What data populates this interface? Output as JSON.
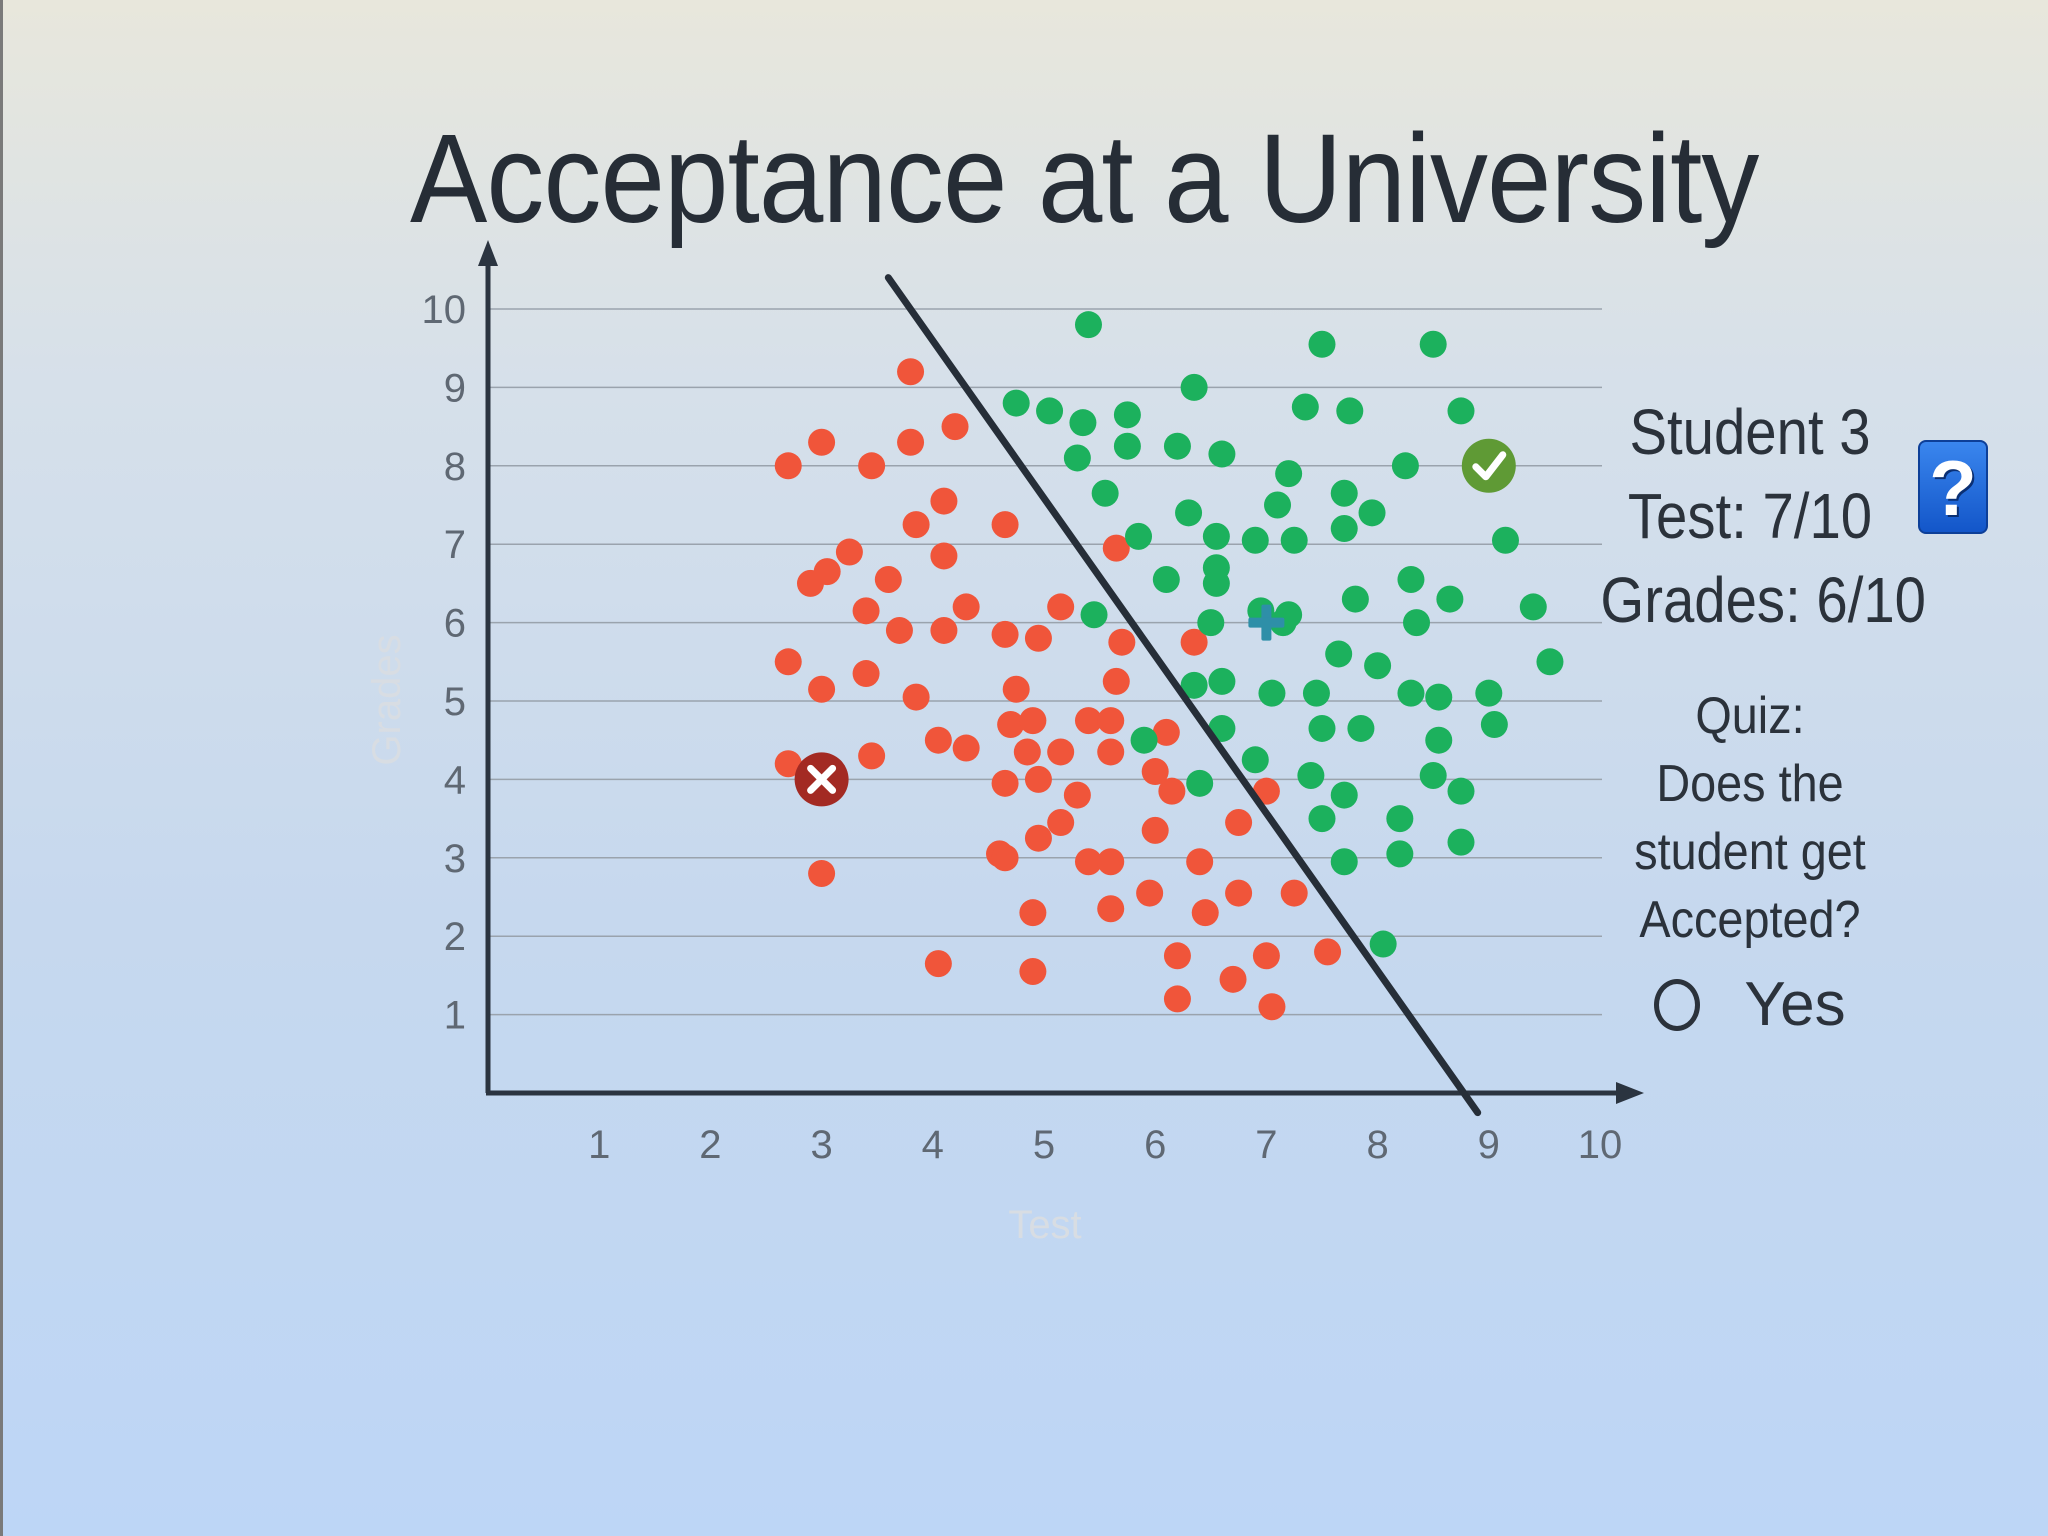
{
  "title": "Acceptance at a University",
  "chart_data": {
    "type": "scatter",
    "title": "Acceptance at a University",
    "xlabel": "Test",
    "ylabel": "Grades",
    "xlim": [
      0,
      10
    ],
    "ylim": [
      0,
      10
    ],
    "x_ticks": [
      "1",
      "2",
      "3",
      "4",
      "5",
      "6",
      "7",
      "8",
      "9",
      "10"
    ],
    "y_ticks": [
      "1",
      "2",
      "3",
      "4",
      "5",
      "6",
      "7",
      "8",
      "9",
      "10"
    ],
    "grid": "horizontal",
    "series": [
      {
        "color": "#f0553a",
        "points": [
          [
            2.7,
            8.0
          ],
          [
            3.0,
            8.3
          ],
          [
            3.45,
            8.0
          ],
          [
            3.8,
            8.3
          ],
          [
            3.8,
            9.2
          ],
          [
            4.2,
            8.5
          ],
          [
            2.9,
            6.5
          ],
          [
            3.05,
            6.65
          ],
          [
            3.25,
            6.9
          ],
          [
            3.4,
            6.15
          ],
          [
            3.6,
            6.55
          ],
          [
            3.7,
            5.9
          ],
          [
            3.85,
            7.25
          ],
          [
            4.1,
            6.85
          ],
          [
            4.1,
            7.55
          ],
          [
            4.3,
            6.2
          ],
          [
            4.1,
            5.9
          ],
          [
            4.65,
            7.25
          ],
          [
            2.7,
            5.5
          ],
          [
            3.0,
            5.15
          ],
          [
            3.4,
            5.35
          ],
          [
            3.85,
            5.05
          ],
          [
            2.7,
            4.2
          ],
          [
            3.45,
            4.3
          ],
          [
            3.0,
            2.8
          ],
          [
            4.05,
            4.5
          ],
          [
            4.3,
            4.4
          ],
          [
            4.05,
            1.65
          ],
          [
            4.65,
            5.85
          ],
          [
            4.95,
            5.8
          ],
          [
            5.15,
            6.2
          ],
          [
            4.75,
            5.15
          ],
          [
            4.7,
            4.7
          ],
          [
            4.9,
            4.75
          ],
          [
            4.85,
            4.35
          ],
          [
            4.65,
            3.95
          ],
          [
            4.95,
            4.0
          ],
          [
            5.15,
            4.35
          ],
          [
            5.4,
            4.75
          ],
          [
            5.3,
            3.8
          ],
          [
            5.15,
            3.45
          ],
          [
            4.95,
            3.25
          ],
          [
            4.6,
            3.05
          ],
          [
            4.65,
            3.0
          ],
          [
            5.4,
            2.95
          ],
          [
            5.6,
            2.95
          ],
          [
            5.6,
            2.35
          ],
          [
            4.9,
            2.3
          ],
          [
            4.9,
            1.55
          ],
          [
            5.6,
            4.75
          ],
          [
            5.6,
            4.35
          ],
          [
            5.65,
            5.25
          ],
          [
            5.7,
            5.75
          ],
          [
            5.65,
            6.95
          ],
          [
            6.0,
            4.1
          ],
          [
            6.15,
            3.85
          ],
          [
            6.0,
            3.35
          ],
          [
            5.95,
            2.55
          ],
          [
            6.1,
            4.6
          ],
          [
            6.35,
            5.75
          ],
          [
            6.4,
            2.95
          ],
          [
            6.2,
            1.75
          ],
          [
            6.45,
            2.3
          ],
          [
            6.2,
            1.2
          ],
          [
            6.7,
            1.45
          ],
          [
            6.75,
            2.55
          ],
          [
            6.75,
            3.45
          ],
          [
            7.0,
            3.85
          ],
          [
            7.0,
            1.75
          ],
          [
            7.05,
            1.1
          ],
          [
            7.25,
            2.55
          ],
          [
            7.55,
            1.8
          ]
        ]
      },
      {
        "color": "#1cb15d",
        "points": [
          [
            5.4,
            9.8
          ],
          [
            7.5,
            9.55
          ],
          [
            8.5,
            9.55
          ],
          [
            4.75,
            8.8
          ],
          [
            5.05,
            8.7
          ],
          [
            5.35,
            8.55
          ],
          [
            5.75,
            8.65
          ],
          [
            6.35,
            9.0
          ],
          [
            7.35,
            8.75
          ],
          [
            7.75,
            8.7
          ],
          [
            8.75,
            8.7
          ],
          [
            5.3,
            8.1
          ],
          [
            5.75,
            8.25
          ],
          [
            6.2,
            8.25
          ],
          [
            6.6,
            8.15
          ],
          [
            7.2,
            7.9
          ],
          [
            8.25,
            8.0
          ],
          [
            5.55,
            7.65
          ],
          [
            6.3,
            7.4
          ],
          [
            7.1,
            7.5
          ],
          [
            7.7,
            7.65
          ],
          [
            7.95,
            7.4
          ],
          [
            5.85,
            7.1
          ],
          [
            6.55,
            7.1
          ],
          [
            6.9,
            7.05
          ],
          [
            7.25,
            7.05
          ],
          [
            7.7,
            7.2
          ],
          [
            9.15,
            7.05
          ],
          [
            6.1,
            6.55
          ],
          [
            6.55,
            6.5
          ],
          [
            6.55,
            6.7
          ],
          [
            8.3,
            6.55
          ],
          [
            5.45,
            6.1
          ],
          [
            6.5,
            6.0
          ],
          [
            6.95,
            6.15
          ],
          [
            7.15,
            6.0
          ],
          [
            7.2,
            6.1
          ],
          [
            7.8,
            6.3
          ],
          [
            8.65,
            6.3
          ],
          [
            9.4,
            6.2
          ],
          [
            8.35,
            6.0
          ],
          [
            7.65,
            5.6
          ],
          [
            8.0,
            5.45
          ],
          [
            9.55,
            5.5
          ],
          [
            6.35,
            5.2
          ],
          [
            6.6,
            5.25
          ],
          [
            7.05,
            5.1
          ],
          [
            7.45,
            5.1
          ],
          [
            8.3,
            5.1
          ],
          [
            8.55,
            5.05
          ],
          [
            9.0,
            5.1
          ],
          [
            6.6,
            4.65
          ],
          [
            7.5,
            4.65
          ],
          [
            7.85,
            4.65
          ],
          [
            9.05,
            4.7
          ],
          [
            5.9,
            4.5
          ],
          [
            8.55,
            4.5
          ],
          [
            6.9,
            4.25
          ],
          [
            7.4,
            4.05
          ],
          [
            8.5,
            4.05
          ],
          [
            6.4,
            3.95
          ],
          [
            7.7,
            3.8
          ],
          [
            8.75,
            3.85
          ],
          [
            7.5,
            3.5
          ],
          [
            8.2,
            3.5
          ],
          [
            8.75,
            3.2
          ],
          [
            7.7,
            2.95
          ],
          [
            8.2,
            3.05
          ],
          [
            8.05,
            1.9
          ]
        ]
      }
    ],
    "boundary_line": [
      [
        3.6,
        10.4
      ],
      [
        8.9,
        -0.25
      ]
    ],
    "markers": [
      {
        "name": "rejected-marker",
        "x": 3.0,
        "y": 4.0,
        "color": "#a32a23"
      },
      {
        "name": "accepted-marker",
        "x": 9.0,
        "y": 8.0,
        "color": "#5f9a35"
      },
      {
        "name": "student-3-marker",
        "x": 7.0,
        "y": 6.0,
        "color": "#2e8fa8"
      }
    ]
  },
  "panel": {
    "student": "Student 3",
    "test": "Test: 7/10",
    "grades": "Grades: 6/10",
    "quiz_title": "Quiz:",
    "quiz_line1": "Does the",
    "quiz_line2": "student get",
    "quiz_line3": "Accepted?",
    "option_yes": "Yes"
  },
  "help_button": {
    "label": "?",
    "color": "#2571df"
  }
}
